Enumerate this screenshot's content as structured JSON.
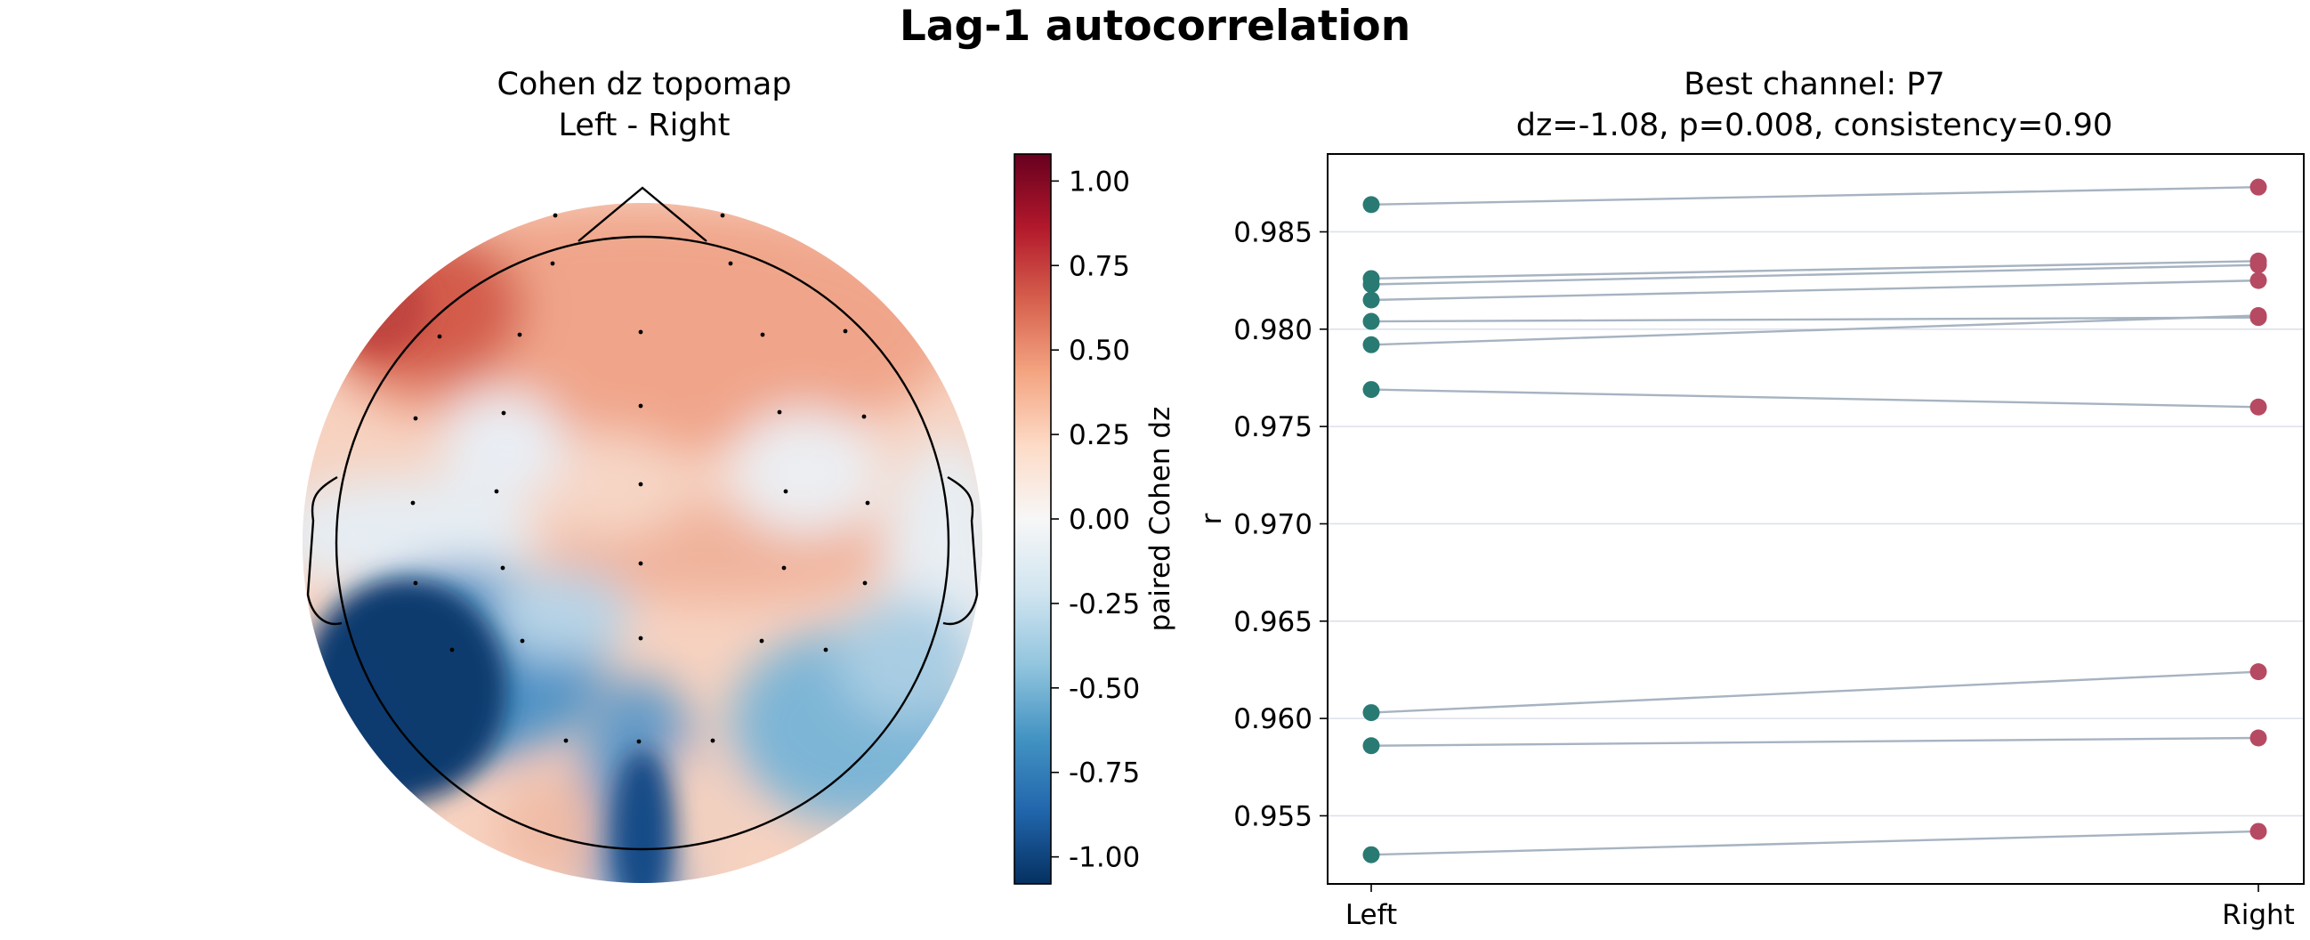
{
  "title": "Lag-1 autocorrelation",
  "chart_data": [
    {
      "type": "heatmap",
      "subtype": "topomap",
      "title": "Cohen dz topomap",
      "subtitle": "Left - Right",
      "colorbar": {
        "label": "paired Cohen dz",
        "range": [
          -1.08,
          1.08
        ],
        "colormap": "RdBu_r",
        "ticks": [
          1.0,
          0.75,
          0.5,
          0.25,
          0.0,
          -0.25,
          -0.5,
          -0.75,
          -1.0
        ],
        "tick_labels": [
          "1.00",
          "0.75",
          "0.50",
          "0.25",
          "0.00",
          "-0.25",
          "-0.50",
          "-0.75",
          "-1.00"
        ]
      },
      "colors": {
        "dark_red": "#67001f",
        "red": "#b2182b",
        "salmon": "#d6604d",
        "light_salmon": "#f4a582",
        "pale_red": "#fddbc7",
        "white": "#f7f7f7",
        "pale_blue": "#d1e5f0",
        "light_blue": "#92c5de",
        "blue": "#4393c3",
        "mid_blue": "#2166ac",
        "dark_blue": "#053061"
      }
    },
    {
      "type": "line",
      "subtype": "paired-dot",
      "title": "Best channel: P7",
      "subtitle": "dz=-1.08, p=0.008, consistency=0.90",
      "xlabel": "",
      "ylabel": "r",
      "categories": [
        "Left",
        "Right"
      ],
      "ylim": [
        0.9515,
        0.989
      ],
      "yticks": [
        0.955,
        0.96,
        0.965,
        0.97,
        0.975,
        0.98,
        0.985
      ],
      "ytick_labels": [
        "0.955",
        "0.960",
        "0.965",
        "0.970",
        "0.975",
        "0.980",
        "0.985"
      ],
      "grid": "horizontal",
      "pairs": [
        [
          0.9864,
          0.9873
        ],
        [
          0.9826,
          0.9835
        ],
        [
          0.9823,
          0.9833
        ],
        [
          0.9815,
          0.9825
        ],
        [
          0.9804,
          0.9806
        ],
        [
          0.9792,
          0.9807
        ],
        [
          0.9769,
          0.976
        ],
        [
          0.9603,
          0.9624
        ],
        [
          0.9586,
          0.959
        ],
        [
          0.953,
          0.9542
        ]
      ],
      "colors": {
        "left": "#2a7a74",
        "right": "#b74a63",
        "line": "#a6b3c1",
        "grid": "#dde1ea"
      }
    }
  ]
}
